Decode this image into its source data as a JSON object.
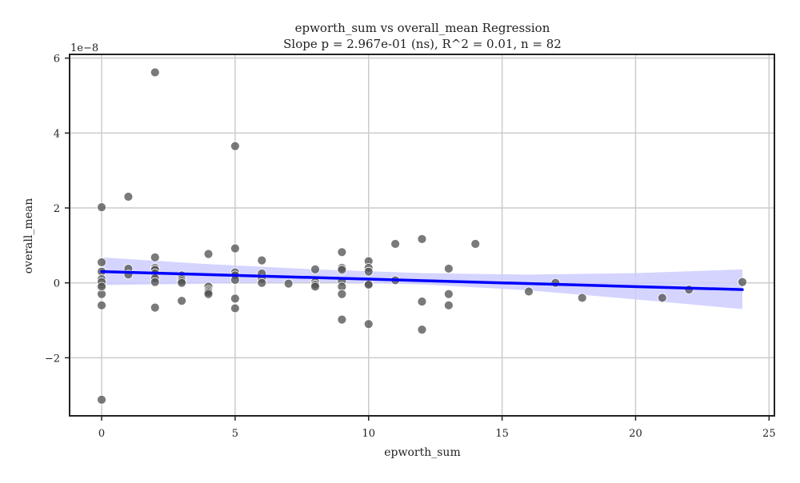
{
  "chart_data": {
    "type": "scatter",
    "title_line1": "epworth_sum vs overall_mean Regression",
    "title_line2": "Slope p = 2.967e-01 (ns), R^2 = 0.01, n = 82",
    "xlabel": "epworth_sum",
    "ylabel": "overall_mean",
    "y_offset_label": "1e−8",
    "xlim": [
      -1.2,
      25.2
    ],
    "ylim": [
      -3.55,
      6.1
    ],
    "x_ticks": [
      0,
      5,
      10,
      15,
      20,
      25
    ],
    "x_tick_labels": [
      "0",
      "5",
      "10",
      "15",
      "20",
      "25"
    ],
    "y_ticks": [
      -2,
      0,
      2,
      4,
      6
    ],
    "y_tick_labels": [
      "−2",
      "0",
      "2",
      "4",
      "6"
    ],
    "grid": true,
    "point_color": "#555555",
    "line_color": "#0000ff",
    "band_color": "#ccccff",
    "points": [
      {
        "x": 0,
        "y": 0.55
      },
      {
        "x": 0,
        "y": 0.3
      },
      {
        "x": 0,
        "y": 0.1
      },
      {
        "x": 0,
        "y": -0.05
      },
      {
        "x": 0,
        "y": -0.3
      },
      {
        "x": 0,
        "y": -0.6
      },
      {
        "x": 0,
        "y": 2.02
      },
      {
        "x": 0,
        "y": -3.12
      },
      {
        "x": 0,
        "y": 0.02
      },
      {
        "x": 0,
        "y": -0.1
      },
      {
        "x": 1,
        "y": 2.3
      },
      {
        "x": 1,
        "y": 0.38
      },
      {
        "x": 1,
        "y": 0.22
      },
      {
        "x": 2,
        "y": 5.62
      },
      {
        "x": 2,
        "y": 0.68
      },
      {
        "x": 2,
        "y": 0.4
      },
      {
        "x": 2,
        "y": 0.35
      },
      {
        "x": 2,
        "y": 0.25
      },
      {
        "x": 2,
        "y": 0.12
      },
      {
        "x": 2,
        "y": 0.02
      },
      {
        "x": 2,
        "y": -0.66
      },
      {
        "x": 3,
        "y": 0.2
      },
      {
        "x": 3,
        "y": 0.1
      },
      {
        "x": 3,
        "y": 0.05
      },
      {
        "x": 3,
        "y": 0.0
      },
      {
        "x": 3,
        "y": -0.48
      },
      {
        "x": 4,
        "y": 0.77
      },
      {
        "x": 4,
        "y": -0.1
      },
      {
        "x": 4,
        "y": -0.2
      },
      {
        "x": 4,
        "y": -0.25
      },
      {
        "x": 4,
        "y": -0.3
      },
      {
        "x": 5,
        "y": 3.65
      },
      {
        "x": 5,
        "y": 0.92
      },
      {
        "x": 5,
        "y": 0.28
      },
      {
        "x": 5,
        "y": 0.2
      },
      {
        "x": 5,
        "y": 0.08
      },
      {
        "x": 5,
        "y": -0.42
      },
      {
        "x": 5,
        "y": -0.68
      },
      {
        "x": 6,
        "y": 0.6
      },
      {
        "x": 6,
        "y": 0.25
      },
      {
        "x": 6,
        "y": 0.1
      },
      {
        "x": 6,
        "y": 0.0
      },
      {
        "x": 7,
        "y": -0.02
      },
      {
        "x": 8,
        "y": 0.36
      },
      {
        "x": 8,
        "y": 0.02
      },
      {
        "x": 8,
        "y": -0.05
      },
      {
        "x": 8,
        "y": -0.1
      },
      {
        "x": 9,
        "y": 0.82
      },
      {
        "x": 9,
        "y": 0.4
      },
      {
        "x": 9,
        "y": 0.35
      },
      {
        "x": 9,
        "y": 0.05
      },
      {
        "x": 9,
        "y": -0.1
      },
      {
        "x": 9,
        "y": -0.3
      },
      {
        "x": 9,
        "y": -0.98
      },
      {
        "x": 10,
        "y": 0.58
      },
      {
        "x": 10,
        "y": 0.4
      },
      {
        "x": 10,
        "y": 0.3
      },
      {
        "x": 10,
        "y": -0.02
      },
      {
        "x": 10,
        "y": -0.05
      },
      {
        "x": 10,
        "y": -1.1
      },
      {
        "x": 11,
        "y": 1.04
      },
      {
        "x": 11,
        "y": 0.07
      },
      {
        "x": 12,
        "y": 1.17
      },
      {
        "x": 12,
        "y": -0.5
      },
      {
        "x": 12,
        "y": -1.25
      },
      {
        "x": 13,
        "y": 0.38
      },
      {
        "x": 13,
        "y": -0.3
      },
      {
        "x": 13,
        "y": -0.6
      },
      {
        "x": 14,
        "y": 1.04
      },
      {
        "x": 16,
        "y": -0.23
      },
      {
        "x": 17,
        "y": 0.0
      },
      {
        "x": 18,
        "y": -0.4
      },
      {
        "x": 21,
        "y": -0.4
      },
      {
        "x": 22,
        "y": -0.18
      },
      {
        "x": 24,
        "y": 0.02
      }
    ],
    "regression": {
      "x_range": [
        0,
        24
      ],
      "y_at_start": 0.3,
      "y_at_end": -0.18,
      "ci_upper": [
        [
          0,
          0.68
        ],
        [
          4,
          0.5
        ],
        [
          8,
          0.36
        ],
        [
          12,
          0.26
        ],
        [
          16,
          0.22
        ],
        [
          20,
          0.26
        ],
        [
          24,
          0.36
        ]
      ],
      "ci_lower": [
        [
          0,
          -0.06
        ],
        [
          4,
          -0.02
        ],
        [
          8,
          0.02
        ],
        [
          12,
          -0.04
        ],
        [
          16,
          -0.2
        ],
        [
          20,
          -0.44
        ],
        [
          24,
          -0.7
        ]
      ]
    }
  }
}
